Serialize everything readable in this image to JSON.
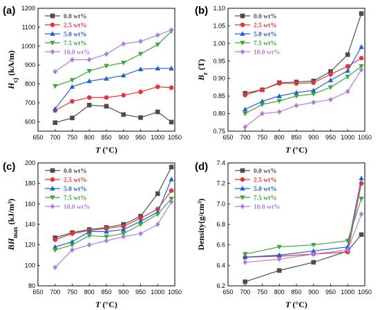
{
  "colors": {
    "s0": "#4d4d4d",
    "s1": "#e8333c",
    "s2": "#1f5fd6",
    "s3": "#3aa93a",
    "s4": "#b07ce0"
  },
  "chart_data": [
    {
      "type": "line",
      "panel_label": "(a)",
      "ylabel_main": "H",
      "ylabel_sub": "cj",
      "ylabel_tail": " (kA/m)",
      "xlabel_main": "T",
      "xlabel_tail": " (°C)",
      "xlim": [
        650,
        1050
      ],
      "ylim": [
        550,
        1200
      ],
      "xticks": [
        650,
        700,
        750,
        800,
        850,
        900,
        950,
        1000,
        1050
      ],
      "yticks": [
        600,
        700,
        800,
        900,
        1000,
        1100,
        1200
      ],
      "legend_position": "top-left",
      "x": [
        700,
        750,
        800,
        850,
        900,
        950,
        1000,
        1040
      ],
      "series": [
        {
          "name": "0.0 wt%",
          "marker": "square",
          "values": [
            595,
            620,
            688,
            682,
            638,
            622,
            652,
            598
          ]
        },
        {
          "name": "2.5 wt%",
          "marker": "circle",
          "values": [
            660,
            708,
            728,
            728,
            740,
            758,
            785,
            780
          ]
        },
        {
          "name": "5.0 wt%",
          "marker": "triangle-up",
          "values": [
            668,
            785,
            815,
            828,
            845,
            878,
            882,
            882
          ]
        },
        {
          "name": "7.5 wt%",
          "marker": "triangle-down",
          "values": [
            788,
            820,
            868,
            895,
            912,
            958,
            1008,
            1078
          ]
        },
        {
          "name": "10.0 wt%",
          "marker": "diamond",
          "values": [
            865,
            928,
            928,
            958,
            1012,
            1025,
            1058,
            1085
          ]
        }
      ]
    },
    {
      "type": "line",
      "panel_label": "(b)",
      "ylabel_main": "B",
      "ylabel_sub": "r",
      "ylabel_tail": " (T)",
      "xlabel_main": "T",
      "xlabel_tail": " (°C)",
      "xlim": [
        650,
        1050
      ],
      "ylim": [
        0.75,
        1.1
      ],
      "xticks": [
        650,
        700,
        750,
        800,
        850,
        900,
        950,
        1000,
        1050
      ],
      "yticks": [
        "0.75",
        "0.80",
        "0.85",
        "0.90",
        "0.95",
        "1.00",
        "1.05",
        "1.10"
      ],
      "legend_position": "top-left",
      "x": [
        700,
        750,
        800,
        850,
        900,
        950,
        1000,
        1040
      ],
      "series": [
        {
          "name": "0.0 wt%",
          "marker": "square",
          "values": [
            0.858,
            0.868,
            0.888,
            0.89,
            0.893,
            0.92,
            0.968,
            1.085
          ]
        },
        {
          "name": "2.5 wt%",
          "marker": "circle",
          "values": [
            0.853,
            0.868,
            0.886,
            0.886,
            0.888,
            0.912,
            0.935,
            0.958
          ]
        },
        {
          "name": "5.0 wt%",
          "marker": "triangle-up",
          "values": [
            0.812,
            0.835,
            0.85,
            0.86,
            0.866,
            0.895,
            0.922,
            0.99
          ]
        },
        {
          "name": "7.5 wt%",
          "marker": "triangle-down",
          "values": [
            0.8,
            0.826,
            0.836,
            0.85,
            0.856,
            0.875,
            0.905,
            0.935
          ]
        },
        {
          "name": "10.0 wt%",
          "marker": "diamond",
          "values": [
            0.762,
            0.8,
            0.805,
            0.823,
            0.832,
            0.84,
            0.863,
            0.925
          ]
        }
      ]
    },
    {
      "type": "line",
      "panel_label": "(c)",
      "ylabel_main": "BH",
      "ylabel_sub": "max",
      "ylabel_tail": " (kJ/m³)",
      "xlabel_main": "T",
      "xlabel_tail": " (°C)",
      "xlim": [
        650,
        1050
      ],
      "ylim": [
        80,
        200
      ],
      "xticks": [
        650,
        700,
        750,
        800,
        850,
        900,
        950,
        1000,
        1050
      ],
      "yticks": [
        80,
        100,
        120,
        140,
        160,
        180,
        200
      ],
      "legend_position": "top-left",
      "x": [
        700,
        750,
        800,
        850,
        900,
        950,
        1000,
        1040
      ],
      "series": [
        {
          "name": "0.0 wt%",
          "marker": "square",
          "values": [
            127,
            132,
            135,
            137,
            140,
            148,
            170,
            196
          ]
        },
        {
          "name": "2.5 wt%",
          "marker": "circle",
          "values": [
            125,
            131,
            134,
            136,
            138,
            146,
            155,
            173
          ]
        },
        {
          "name": "5.0 wt%",
          "marker": "triangle-up",
          "values": [
            118,
            123,
            133,
            133,
            135,
            143,
            152,
            184
          ]
        },
        {
          "name": "7.5 wt%",
          "marker": "triangle-down",
          "values": [
            115,
            120,
            129,
            128,
            131,
            140,
            150,
            165
          ]
        },
        {
          "name": "10.0 wt%",
          "marker": "diamond",
          "values": [
            98,
            115,
            120,
            124,
            128,
            131,
            140,
            162
          ]
        }
      ]
    },
    {
      "type": "line",
      "panel_label": "(d)",
      "ylabel_main": "Density(g/cm³)",
      "ylabel_sub": "",
      "ylabel_tail": "",
      "xlabel_main": "T",
      "xlabel_tail": " (°C)",
      "xlim": [
        650,
        1050
      ],
      "ylim": [
        6.2,
        7.4
      ],
      "xticks": [
        650,
        700,
        750,
        800,
        850,
        900,
        950,
        1000,
        1050
      ],
      "yticks": [
        "6.2",
        "6.4",
        "6.6",
        "6.8",
        "7.0",
        "7.2",
        "7.4"
      ],
      "legend_position": "top-left",
      "x": [
        700,
        800,
        900,
        1000,
        1040
      ],
      "series": [
        {
          "name": "0.0 wt%",
          "marker": "square",
          "values": [
            6.24,
            6.35,
            6.43,
            6.54,
            6.7
          ]
        },
        {
          "name": "2.5 wt%",
          "marker": "circle",
          "values": [
            6.48,
            6.49,
            6.51,
            6.53,
            7.2
          ]
        },
        {
          "name": "5.0 wt%",
          "marker": "triangle-up",
          "values": [
            6.48,
            6.5,
            6.54,
            6.58,
            7.25
          ]
        },
        {
          "name": "7.5 wt%",
          "marker": "triangle-down",
          "values": [
            6.51,
            6.58,
            6.6,
            6.64,
            7.05
          ]
        },
        {
          "name": "10.0 wt%",
          "marker": "diamond",
          "values": [
            6.43,
            6.46,
            6.51,
            6.55,
            6.9
          ]
        }
      ]
    }
  ]
}
